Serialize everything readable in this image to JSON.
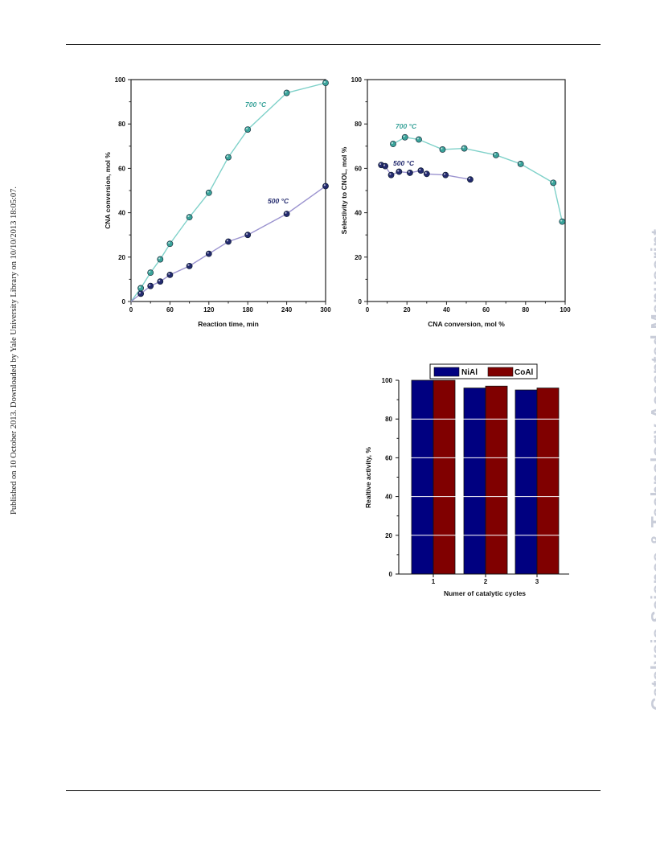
{
  "side_note": "Published on 10 October 2013. Downloaded by Yale University Library on 10/10/2013 18:05:07.",
  "watermark": "Catalysis Science & Technology Accepted Manuscript",
  "colors": {
    "teal": "#3aa39a",
    "teal_line": "#7fd1c9",
    "navy": "#232a6e",
    "purple_line": "#9b93cf",
    "bar_nial": "#000080",
    "bar_coal": "#800000"
  },
  "chart_data": [
    {
      "type": "line",
      "xlabel": "Reaction time, min",
      "ylabel": "CNA conversion, mol %",
      "xlim": [
        0,
        300
      ],
      "ylim": [
        0,
        100
      ],
      "xticks": [
        "0",
        "60",
        "120",
        "180",
        "240",
        "300"
      ],
      "yticks": [
        "0",
        "20",
        "40",
        "60",
        "80",
        "100"
      ],
      "series": [
        {
          "name": "700 °C",
          "x": [
            15,
            30,
            45,
            60,
            90,
            120,
            150,
            180,
            240,
            300
          ],
          "y": [
            6,
            13,
            19,
            26,
            38,
            49,
            65,
            77.5,
            94,
            98.5
          ]
        },
        {
          "name": "500 °C",
          "x": [
            15,
            30,
            45,
            60,
            90,
            120,
            150,
            180,
            240,
            300
          ],
          "y": [
            3.5,
            7,
            9,
            12,
            16,
            21.5,
            27,
            30,
            39.5,
            52
          ]
        }
      ]
    },
    {
      "type": "line",
      "xlabel": "CNA conversion, mol %",
      "ylabel": "Selectivity to CNOL, mol %",
      "xlim": [
        0,
        100
      ],
      "ylim": [
        0,
        100
      ],
      "xticks": [
        "0",
        "20",
        "40",
        "60",
        "80",
        "100"
      ],
      "yticks": [
        "0",
        "20",
        "40",
        "60",
        "80",
        "100"
      ],
      "series": [
        {
          "name": "700 °C",
          "x": [
            13,
            19,
            26,
            38,
            49,
            65,
            77.5,
            94,
            98.5
          ],
          "y": [
            71,
            74,
            73,
            68.5,
            69,
            66,
            62,
            53.5,
            36
          ]
        },
        {
          "name": "500 °C",
          "x": [
            7,
            9,
            12,
            16,
            21.5,
            27,
            30,
            39.5,
            52
          ],
          "y": [
            61.5,
            61,
            57,
            58.5,
            58,
            59,
            57.5,
            57,
            55
          ]
        }
      ]
    },
    {
      "type": "bar",
      "xlabel": "Numer of catalytic cycles",
      "ylabel": "Realtive activity, %",
      "ylim": [
        0,
        100
      ],
      "yticks": [
        "0",
        "20",
        "40",
        "60",
        "80",
        "100"
      ],
      "categories": [
        "1",
        "2",
        "3"
      ],
      "legend_position": "top",
      "series": [
        {
          "name": "NiAl",
          "values": [
            100,
            96,
            95
          ]
        },
        {
          "name": "CoAl",
          "values": [
            100,
            97,
            96
          ]
        }
      ]
    }
  ]
}
